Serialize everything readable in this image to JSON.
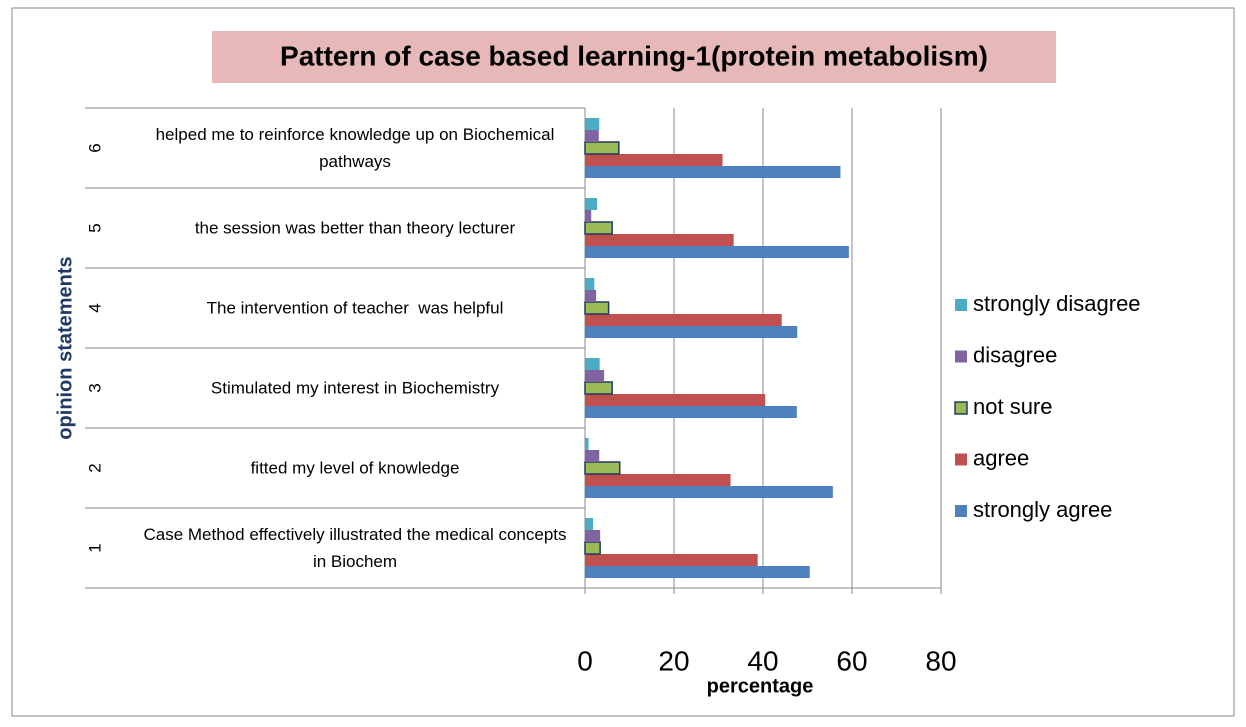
{
  "chart_data": {
    "type": "hbar",
    "title": "Pattern of case based learning-1(protein metabolism)",
    "x_label": "percentage",
    "y_label": "opinion statements",
    "category_numbers": [
      "1",
      "2",
      "3",
      "4",
      "5",
      "6"
    ],
    "categories": [
      "Case Method effectively illustrated the medical concepts in Biochem",
      "fitted my level of knowledge",
      "Stimulated my interest in Biochemistry",
      "The intervention of teacher  was helpful",
      "the session was better than theory lecturer",
      "helped me to reinforce knowledge up on Biochemical pathways"
    ],
    "series": [
      {
        "name": "strongly agree",
        "color": "#4f81bd",
        "values": [
          50.5,
          55.7,
          47.6,
          47.7,
          59.3,
          57.4
        ]
      },
      {
        "name": "agree",
        "color": "#c0504d",
        "values": [
          38.8,
          32.7,
          40.5,
          44.2,
          33.4,
          30.9
        ]
      },
      {
        "name": "not sure",
        "color": "#9bbb59",
        "outline": "#1f3864",
        "values": [
          3.4,
          7.8,
          6.1,
          5.3,
          6.1,
          7.6
        ]
      },
      {
        "name": "disagree",
        "color": "#8064a2",
        "values": [
          3.4,
          3.2,
          4.3,
          2.5,
          1.4,
          3.1
        ]
      },
      {
        "name": "strongly disagree",
        "color": "#4bacc6",
        "values": [
          1.8,
          0.8,
          3.3,
          2.1,
          2.7,
          3.2
        ]
      }
    ],
    "xlim": [
      0,
      80
    ],
    "xticks": [
      0,
      20,
      40,
      60,
      80
    ],
    "grid": true,
    "legend": "right"
  }
}
